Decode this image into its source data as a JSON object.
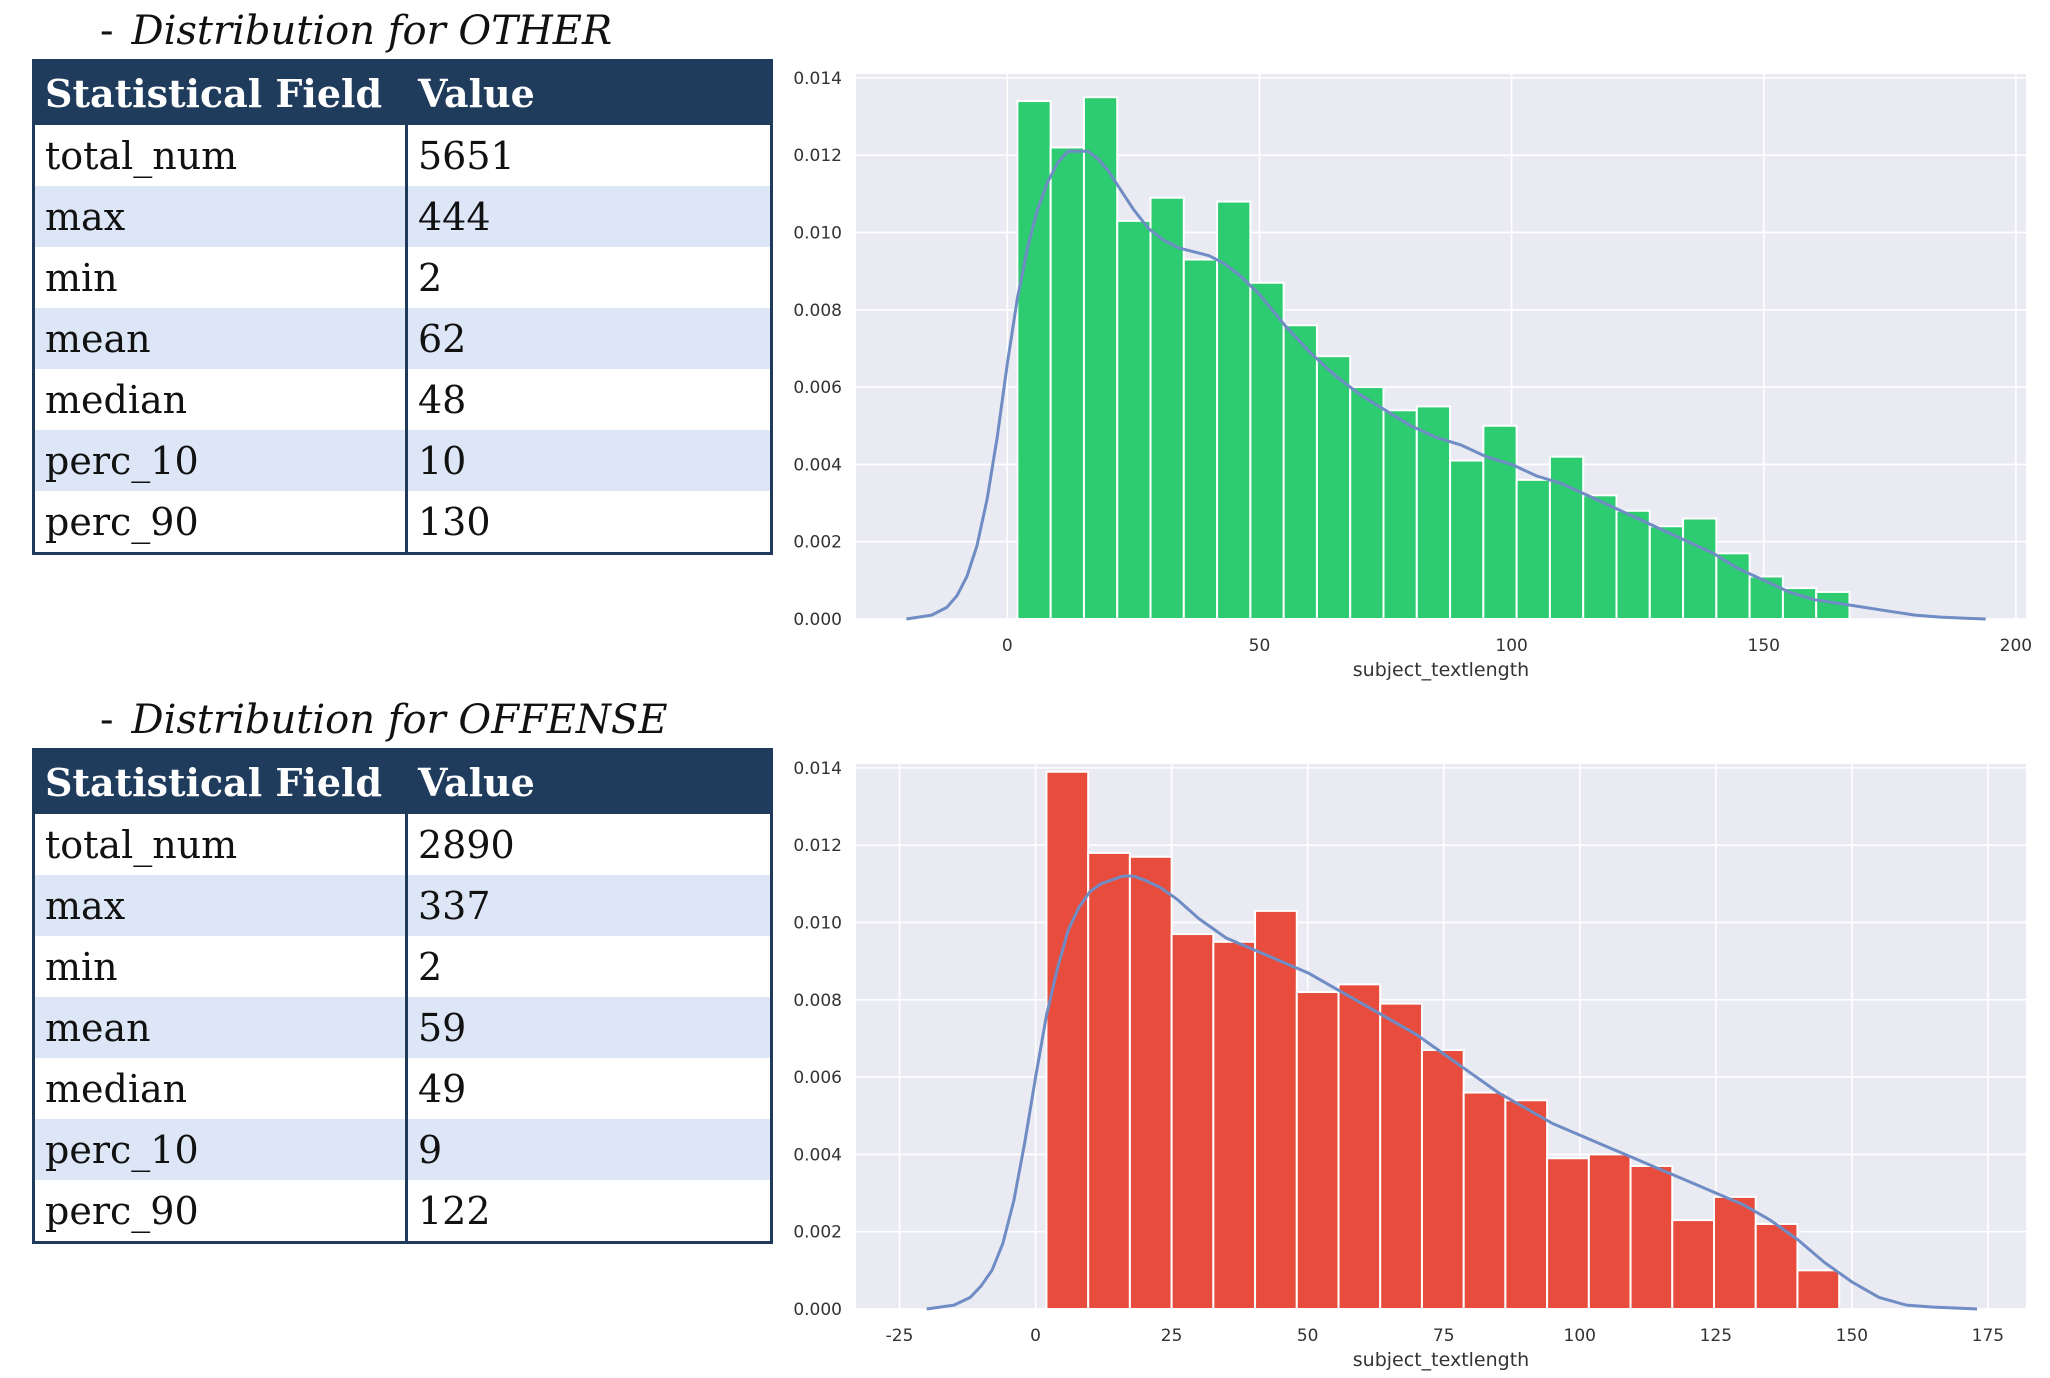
{
  "sections": [
    {
      "title": "Distribution for OTHER",
      "table": {
        "headers": [
          "Statistical Field",
          "Value"
        ],
        "rows": [
          [
            "total_num",
            "5651"
          ],
          [
            "max",
            "444"
          ],
          [
            "min",
            "2"
          ],
          [
            "mean",
            "62"
          ],
          [
            "median",
            "48"
          ],
          [
            "perc_10",
            "10"
          ],
          [
            "perc_90",
            "130"
          ]
        ]
      }
    },
    {
      "title": "Distribution for OFFENSE",
      "table": {
        "headers": [
          "Statistical Field",
          "Value"
        ],
        "rows": [
          [
            "total_num",
            "2890"
          ],
          [
            "max",
            "337"
          ],
          [
            "min",
            "2"
          ],
          [
            "mean",
            "59"
          ],
          [
            "median",
            "49"
          ],
          [
            "perc_10",
            "9"
          ],
          [
            "perc_90",
            "122"
          ]
        ]
      }
    }
  ],
  "chart_data": [
    {
      "type": "bar",
      "subtype": "histogram_with_kde",
      "xlabel": "subject_textlength",
      "ylabel": "",
      "xlim": [
        -30,
        202
      ],
      "ylim": [
        0,
        0.0141
      ],
      "xticks": [
        0,
        50,
        100,
        150,
        200
      ],
      "yticks": [
        "0.000",
        "0.002",
        "0.004",
        "0.006",
        "0.008",
        "0.010",
        "0.012",
        "0.014"
      ],
      "grid": true,
      "colors": {
        "bars": "#2ecc71",
        "kde": "#6f8cc4",
        "background": "#eaeaf2"
      },
      "bin_edges": [
        2,
        8.6,
        15.2,
        21.8,
        28.4,
        35,
        41.6,
        48.2,
        54.8,
        61.4,
        68,
        74.6,
        81.2,
        87.8,
        94.4,
        101,
        107.6,
        114.2,
        120.8,
        127.4,
        134,
        140.6,
        147.2,
        153.8,
        160.4,
        167
      ],
      "values": [
        0.0134,
        0.0122,
        0.0135,
        0.0103,
        0.0109,
        0.0093,
        0.0108,
        0.0087,
        0.0076,
        0.0068,
        0.006,
        0.0054,
        0.0055,
        0.0041,
        0.005,
        0.0036,
        0.0042,
        0.0032,
        0.0028,
        0.0024,
        0.0026,
        0.0017,
        0.0011,
        0.0008,
        0.0007,
        0.0008
      ],
      "kde": {
        "x": [
          -20,
          -15,
          -12,
          -10,
          -8,
          -6,
          -4,
          -2,
          0,
          2,
          4,
          6,
          8,
          10,
          12,
          14,
          16,
          18,
          20,
          22,
          25,
          28,
          31,
          34,
          37,
          40,
          43,
          46,
          50,
          55,
          60,
          65,
          70,
          75,
          80,
          85,
          90,
          95,
          100,
          105,
          110,
          115,
          120,
          125,
          130,
          135,
          140,
          145,
          150,
          155,
          160,
          165,
          170,
          175,
          180,
          185,
          190,
          194
        ],
        "y": [
          0.0,
          0.0001,
          0.0003,
          0.0006,
          0.0011,
          0.0019,
          0.0031,
          0.0047,
          0.0066,
          0.0083,
          0.0096,
          0.0106,
          0.0113,
          0.0118,
          0.0121,
          0.0121,
          0.0121,
          0.0119,
          0.0116,
          0.0112,
          0.0106,
          0.0101,
          0.0098,
          0.0096,
          0.0095,
          0.0094,
          0.0092,
          0.0089,
          0.0084,
          0.0076,
          0.0069,
          0.0063,
          0.0058,
          0.0054,
          0.005,
          0.0047,
          0.0045,
          0.0042,
          0.004,
          0.0037,
          0.0035,
          0.0032,
          0.0029,
          0.0026,
          0.0023,
          0.002,
          0.0017,
          0.0013,
          0.001,
          0.0007,
          0.0005,
          0.0004,
          0.0003,
          0.0002,
          0.0001,
          5e-05,
          2e-05,
          0.0
        ]
      }
    },
    {
      "type": "bar",
      "subtype": "histogram_with_kde",
      "xlabel": "subject_textlength",
      "ylabel": "",
      "xlim": [
        -33,
        182
      ],
      "ylim": [
        0,
        0.0141
      ],
      "xticks": [
        -25,
        0,
        25,
        50,
        75,
        100,
        125,
        150,
        175
      ],
      "yticks": [
        "0.000",
        "0.002",
        "0.004",
        "0.006",
        "0.008",
        "0.010",
        "0.012",
        "0.014"
      ],
      "grid": true,
      "colors": {
        "bars": "#e74c3c",
        "kde": "#6f8cc4",
        "background": "#eaeaf2"
      },
      "bin_edges": [
        2,
        9.67,
        17.33,
        25,
        32.67,
        40.33,
        48,
        55.67,
        63.33,
        71,
        78.67,
        86.33,
        94,
        101.67,
        109.33,
        117,
        124.67,
        132.33,
        140,
        147.67
      ],
      "values": [
        0.0139,
        0.0118,
        0.0117,
        0.0097,
        0.0095,
        0.0103,
        0.0082,
        0.0084,
        0.0079,
        0.0067,
        0.0056,
        0.0054,
        0.0039,
        0.004,
        0.0037,
        0.0023,
        0.0029,
        0.0022,
        0.001
      ],
      "kde": {
        "x": [
          -20,
          -15,
          -12,
          -10,
          -8,
          -6,
          -4,
          -2,
          0,
          2,
          4,
          6,
          8,
          10,
          12,
          14,
          16,
          18,
          20,
          23,
          26,
          30,
          35,
          40,
          45,
          50,
          55,
          60,
          65,
          70,
          75,
          80,
          85,
          90,
          95,
          100,
          105,
          110,
          115,
          120,
          125,
          130,
          135,
          140,
          145,
          150,
          155,
          160,
          165,
          170,
          173
        ],
        "y": [
          0.0,
          0.0001,
          0.0003,
          0.0006,
          0.001,
          0.0017,
          0.0028,
          0.0043,
          0.006,
          0.0076,
          0.0088,
          0.0098,
          0.0104,
          0.0108,
          0.011,
          0.0111,
          0.0112,
          0.0112,
          0.0111,
          0.0109,
          0.0106,
          0.0101,
          0.0096,
          0.0093,
          0.009,
          0.0087,
          0.0083,
          0.0079,
          0.0075,
          0.0071,
          0.0066,
          0.0061,
          0.0056,
          0.0052,
          0.0048,
          0.0045,
          0.0042,
          0.0039,
          0.0036,
          0.0033,
          0.003,
          0.0027,
          0.0023,
          0.0018,
          0.0012,
          0.0007,
          0.0003,
          0.0001,
          5e-05,
          2e-05,
          0.0
        ]
      }
    }
  ]
}
